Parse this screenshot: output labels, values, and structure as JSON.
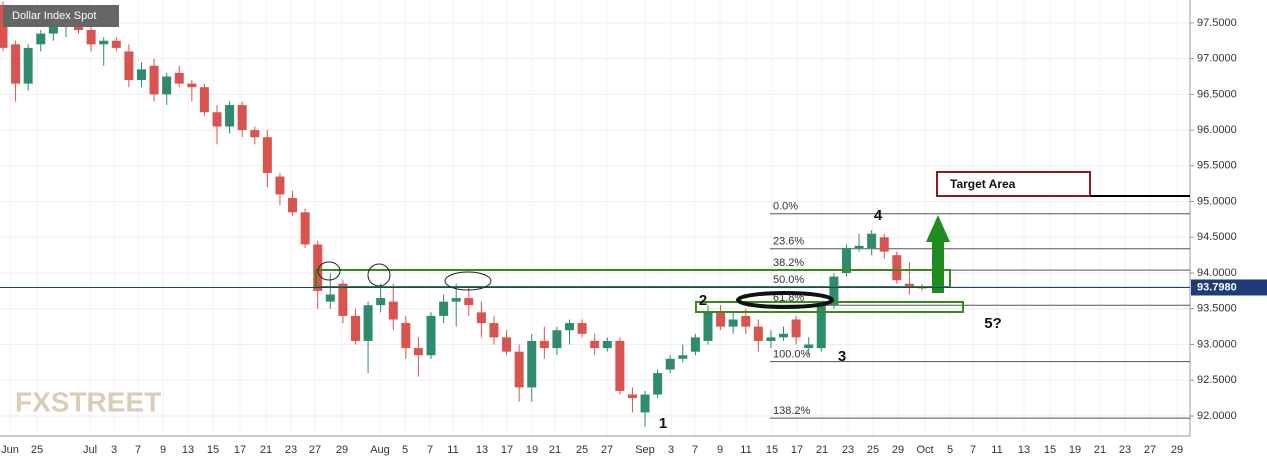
{
  "chart_data": {
    "type": "candlestick",
    "title": "Dollar Index Spot",
    "watermark": "FXSTREET",
    "up_color": "#2e8b6e",
    "down_color": "#d9534f",
    "ylim": [
      91.72,
      97.82
    ],
    "yticks": [
      {
        "value": 92.0,
        "label": "92.0000"
      },
      {
        "value": 92.5,
        "label": "92.5000"
      },
      {
        "value": 93.0,
        "label": "93.0000"
      },
      {
        "value": 93.5,
        "label": "93.5000"
      },
      {
        "value": 94.0,
        "label": "94.0000"
      },
      {
        "value": 94.5,
        "label": "94.5000"
      },
      {
        "value": 95.0,
        "label": "95.0000"
      },
      {
        "value": 95.5,
        "label": "95.5000"
      },
      {
        "value": 96.0,
        "label": "96.0000"
      },
      {
        "value": 96.5,
        "label": "96.5000"
      },
      {
        "value": 97.0,
        "label": "97.0000"
      },
      {
        "value": 97.5,
        "label": "97.5000"
      }
    ],
    "grid": true,
    "x_tick_labels": [
      "Jun",
      "25",
      "Jul",
      "3",
      "7",
      "9",
      "13",
      "15",
      "17",
      "21",
      "23",
      "27",
      "29",
      "Aug",
      "5",
      "7",
      "11",
      "13",
      "17",
      "19",
      "21",
      "25",
      "27",
      "Sep",
      "3",
      "7",
      "9",
      "11",
      "15",
      "17",
      "21",
      "23",
      "25",
      "29",
      "Oct",
      "5",
      "7",
      "11",
      "13",
      "15",
      "19",
      "21",
      "23",
      "27",
      "29"
    ],
    "open": [
      97.75,
      97.2,
      96.65,
      97.2,
      97.35,
      97.45,
      97.55,
      97.4,
      97.2,
      97.25,
      97.1,
      96.7,
      96.9,
      96.5,
      96.8,
      96.65,
      96.6,
      96.25,
      96.05,
      96.35,
      96.0,
      95.9,
      95.35,
      95.05,
      94.85,
      94.4,
      93.6,
      93.85,
      93.4,
      93.05,
      93.55,
      93.6,
      93.3,
      92.95,
      92.85,
      93.4,
      93.6,
      93.65,
      93.45,
      93.3,
      93.1,
      92.9,
      92.4,
      93.05,
      92.95,
      93.2,
      93.3,
      93.05,
      92.95,
      93.05,
      92.3,
      92.05,
      92.3,
      92.65,
      92.8,
      92.9,
      93.05,
      93.45,
      93.25,
      93.4,
      93.25,
      93.05,
      93.1,
      93.35,
      92.95,
      92.95,
      93.55,
      94.0,
      94.35,
      94.35,
      94.5,
      94.25,
      93.85,
      93.8
    ],
    "high": [
      97.8,
      97.25,
      97.2,
      97.4,
      97.55,
      97.65,
      97.7,
      97.5,
      97.3,
      97.3,
      97.2,
      96.95,
      97.0,
      96.8,
      96.9,
      96.7,
      96.65,
      96.35,
      96.4,
      96.4,
      96.05,
      96.0,
      95.4,
      95.15,
      94.9,
      94.45,
      94.0,
      93.9,
      93.5,
      93.6,
      93.85,
      93.85,
      93.4,
      93.1,
      93.45,
      93.7,
      93.85,
      93.8,
      93.6,
      93.4,
      93.2,
      93.0,
      93.15,
      93.25,
      93.25,
      93.35,
      93.35,
      93.15,
      93.1,
      93.1,
      92.4,
      92.35,
      92.65,
      92.85,
      93.0,
      93.15,
      93.55,
      93.55,
      93.45,
      93.5,
      93.35,
      93.2,
      93.25,
      93.4,
      93.1,
      93.6,
      94.0,
      94.4,
      94.55,
      94.6,
      94.55,
      94.3,
      94.15,
      93.85
    ],
    "low": [
      97.1,
      96.4,
      96.55,
      97.1,
      97.25,
      97.3,
      97.35,
      97.1,
      96.9,
      97.1,
      96.6,
      96.6,
      96.4,
      96.35,
      96.6,
      96.4,
      96.2,
      95.8,
      95.95,
      95.9,
      95.8,
      95.2,
      94.95,
      94.8,
      94.35,
      93.5,
      93.5,
      93.3,
      93.0,
      92.6,
      93.45,
      93.2,
      92.8,
      92.55,
      92.8,
      93.3,
      93.25,
      93.4,
      93.1,
      93.0,
      92.85,
      92.2,
      92.2,
      92.8,
      92.85,
      93.0,
      93.1,
      92.85,
      92.9,
      92.3,
      92.05,
      91.85,
      92.25,
      92.6,
      92.75,
      92.85,
      93.0,
      93.2,
      93.15,
      93.15,
      92.9,
      92.95,
      93.05,
      93.0,
      92.85,
      92.9,
      93.5,
      93.95,
      94.3,
      94.25,
      94.2,
      93.85,
      93.7,
      93.75
    ],
    "close": [
      97.15,
      96.65,
      97.15,
      97.35,
      97.45,
      97.55,
      97.4,
      97.2,
      97.25,
      97.15,
      96.7,
      96.85,
      96.5,
      96.75,
      96.65,
      96.6,
      96.25,
      96.05,
      96.35,
      96.0,
      95.9,
      95.4,
      95.1,
      94.85,
      94.4,
      93.75,
      93.7,
      93.4,
      93.05,
      93.55,
      93.65,
      93.35,
      92.95,
      92.85,
      93.4,
      93.6,
      93.65,
      93.55,
      93.3,
      93.1,
      92.9,
      92.4,
      93.05,
      92.95,
      93.2,
      93.3,
      93.15,
      92.95,
      93.05,
      92.35,
      92.25,
      92.3,
      92.6,
      92.8,
      92.85,
      93.1,
      93.45,
      93.25,
      93.35,
      93.25,
      93.05,
      93.1,
      93.15,
      93.1,
      93.0,
      93.55,
      93.95,
      94.35,
      94.38,
      94.55,
      94.3,
      93.9,
      93.8,
      93.798
    ],
    "last_price": {
      "value": 93.798,
      "label": "93.7980"
    },
    "fib_levels": [
      {
        "value": 94.83,
        "label": "0.0%"
      },
      {
        "value": 94.34,
        "label": "23.6%"
      },
      {
        "value": 94.04,
        "label": "38.2%"
      },
      {
        "value": 93.8,
        "label": "50.0%"
      },
      {
        "value": 93.55,
        "label": "61.8%"
      },
      {
        "value": 92.76,
        "label": "100.0%"
      },
      {
        "value": 91.97,
        "label": "138.2%"
      }
    ],
    "annotations": {
      "target": "Target Area",
      "wave1": "1",
      "wave2": "2",
      "wave3": "3",
      "wave4": "4",
      "wave5": "5?"
    }
  }
}
